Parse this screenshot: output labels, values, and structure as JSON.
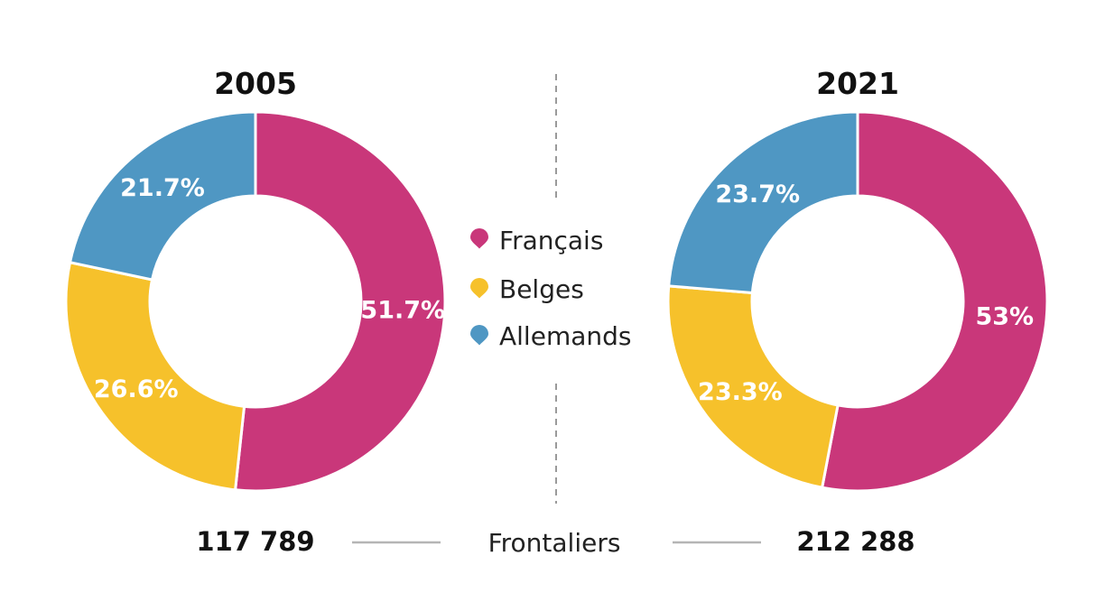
{
  "chart_data": [
    {
      "type": "pie",
      "title": "2005",
      "categories": [
        "Français",
        "Belges",
        "Allemands"
      ],
      "values": [
        51.7,
        26.6,
        21.7
      ],
      "labels": [
        "51.7%",
        "26.6%",
        "21.7%"
      ],
      "total": "117 789"
    },
    {
      "type": "pie",
      "title": "2021",
      "categories": [
        "Français",
        "Belges",
        "Allemands"
      ],
      "values": [
        53,
        23.3,
        23.7
      ],
      "labels": [
        "53%",
        "23.3%",
        "23.7%"
      ],
      "total": "212 288"
    }
  ],
  "legend": [
    {
      "label": "Français",
      "color": "#c9377a"
    },
    {
      "label": "Belges",
      "color": "#f6c12b"
    },
    {
      "label": "Allemands",
      "color": "#4f97c3"
    }
  ],
  "footer": {
    "label": "Frontaliers"
  }
}
